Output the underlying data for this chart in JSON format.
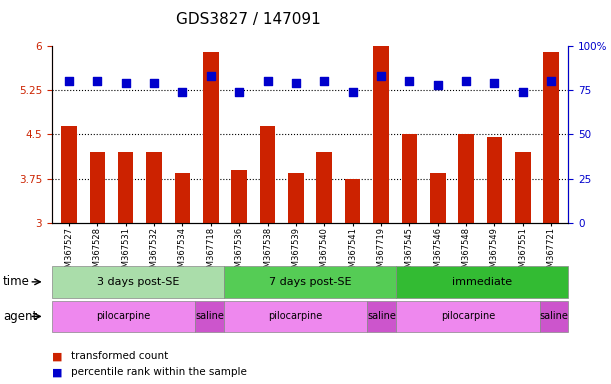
{
  "title": "GDS3827 / 147091",
  "samples": [
    "GSM367527",
    "GSM367528",
    "GSM367531",
    "GSM367532",
    "GSM367534",
    "GSM367718",
    "GSM367536",
    "GSM367538",
    "GSM367539",
    "GSM367540",
    "GSM367541",
    "GSM367719",
    "GSM367545",
    "GSM367546",
    "GSM367548",
    "GSM367549",
    "GSM367551",
    "GSM367721"
  ],
  "bar_values": [
    4.65,
    4.2,
    4.2,
    4.2,
    3.85,
    5.9,
    3.9,
    4.65,
    3.85,
    4.2,
    3.75,
    6.0,
    4.5,
    3.85,
    4.5,
    4.45,
    4.2,
    5.9
  ],
  "dot_values": [
    80,
    80,
    79,
    79,
    74,
    83,
    74,
    80,
    79,
    80,
    74,
    83,
    80,
    78,
    80,
    79,
    74,
    80
  ],
  "ylim_left": [
    3.0,
    6.0
  ],
  "ylim_right": [
    0,
    100
  ],
  "yticks_left": [
    3.0,
    3.75,
    4.5,
    5.25,
    6.0
  ],
  "yticks_right": [
    0,
    25,
    50,
    75,
    100
  ],
  "ytick_labels_left": [
    "3",
    "3.75",
    "4.5",
    "5.25",
    "6"
  ],
  "ytick_labels_right": [
    "0",
    "25",
    "50",
    "75",
    "100%"
  ],
  "hlines": [
    3.75,
    4.5,
    5.25
  ],
  "bar_color": "#cc2200",
  "dot_color": "#0000cc",
  "time_groups": [
    {
      "label": "3 days post-SE",
      "start": 0,
      "end": 6,
      "color": "#aaddaa"
    },
    {
      "label": "7 days post-SE",
      "start": 6,
      "end": 12,
      "color": "#55cc55"
    },
    {
      "label": "immediate",
      "start": 12,
      "end": 18,
      "color": "#33bb33"
    }
  ],
  "agent_groups": [
    {
      "label": "pilocarpine",
      "start": 0,
      "end": 5,
      "color": "#ee88ee"
    },
    {
      "label": "saline",
      "start": 5,
      "end": 6,
      "color": "#cc55cc"
    },
    {
      "label": "pilocarpine",
      "start": 6,
      "end": 11,
      "color": "#ee88ee"
    },
    {
      "label": "saline",
      "start": 11,
      "end": 12,
      "color": "#cc55cc"
    },
    {
      "label": "pilocarpine",
      "start": 12,
      "end": 17,
      "color": "#ee88ee"
    },
    {
      "label": "saline",
      "start": 17,
      "end": 18,
      "color": "#cc55cc"
    }
  ],
  "legend_items": [
    {
      "label": "transformed count",
      "color": "#cc2200"
    },
    {
      "label": "percentile rank within the sample",
      "color": "#0000cc"
    }
  ],
  "bar_width": 0.55,
  "dot_size": 30,
  "bg_color": "#ffffff",
  "plot_bg": "#ffffff",
  "title_fontsize": 11,
  "tick_fontsize": 7.5,
  "label_fontsize": 9
}
